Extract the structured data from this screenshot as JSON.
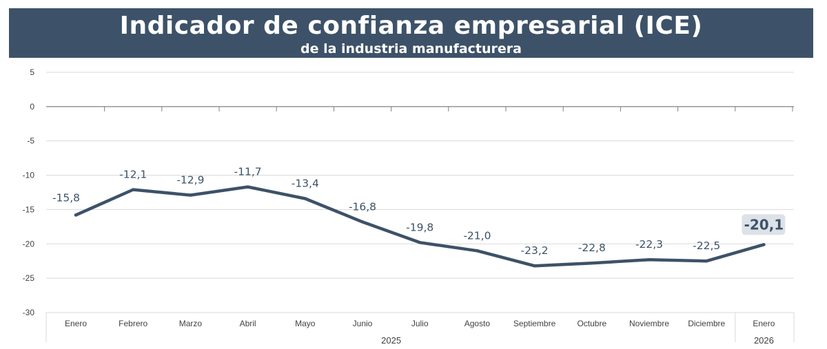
{
  "header": {
    "title": "Indicador de confianza empresarial (ICE)",
    "subtitle": "de la industria manufacturera"
  },
  "colors": {
    "banner": "#3d5268",
    "line": "#3d5268",
    "grid": "#d9d9d9",
    "axis": "#808080",
    "label_text": "#3d5268",
    "tick_text": "#404040",
    "highlight_bg": "#dde2e8"
  },
  "chart_data": {
    "type": "line",
    "title": "Indicador de confianza empresarial (ICE)",
    "subtitle": "de la industria manufacturera",
    "categories": [
      "Enero",
      "Febrero",
      "Marzo",
      "Abril",
      "Mayo",
      "Junio",
      "Julio",
      "Agosto",
      "Septiembre",
      "Octubre",
      "Noviembre",
      "Diciembre",
      "Enero"
    ],
    "groups": [
      {
        "label": "2025",
        "start": 0,
        "end": 11
      },
      {
        "label": "2026",
        "start": 12,
        "end": 12
      }
    ],
    "series": [
      {
        "name": "ICE",
        "values": [
          -15.8,
          -12.1,
          -12.9,
          -11.7,
          -13.4,
          -16.8,
          -19.8,
          -21.0,
          -23.2,
          -22.8,
          -22.3,
          -22.5,
          -20.1
        ]
      }
    ],
    "data_labels": [
      "-15,8",
      "-12,1",
      "-12,9",
      "-11,7",
      "-13,4",
      "-16,8",
      "-19,8",
      "-21,0",
      "-23,2",
      "-22,8",
      "-22,3",
      "-22,5",
      "-20,1"
    ],
    "highlighted_index": 12,
    "yticks": [
      5,
      0,
      -5,
      -10,
      -15,
      -20,
      -25,
      -30
    ],
    "ytick_labels": [
      "5",
      "0",
      "-5",
      "-10",
      "-15",
      "-20",
      "-25",
      "-30"
    ],
    "ylim": [
      -30,
      5
    ],
    "grid": true,
    "xlabel": "",
    "ylabel": ""
  }
}
